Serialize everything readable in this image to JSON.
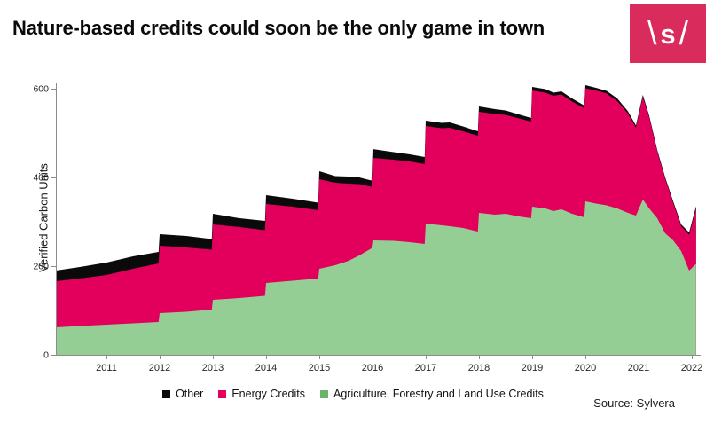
{
  "header": {
    "title": "Nature-based credits could soon be the only game in town",
    "logo": {
      "left": "\\",
      "letter": "s",
      "right": "/",
      "background": "#D92B5C",
      "text_color": "#FFFFFF"
    }
  },
  "footer": {
    "source": "Source: Sylvera"
  },
  "colors": {
    "accent_pink": "#E2005C",
    "area_green": "#95CE94",
    "area_black": "#0A0A0A",
    "axis": "#8C8C8C",
    "tick_text": "#262626"
  },
  "chart_data": {
    "type": "area",
    "stacked": true,
    "title": "",
    "xlabel": "",
    "ylabel": "Verified Carbon Units",
    "grid": false,
    "legend_position": "bottom-center",
    "xlim": [
      2010.05,
      2022.1
    ],
    "ylim": [
      0,
      600
    ],
    "y_ticks": [
      0,
      200,
      400,
      600
    ],
    "x_ticks": [
      2011,
      2012,
      2013,
      2014,
      2015,
      2016,
      2017,
      2018,
      2019,
      2020,
      2021,
      2022
    ],
    "x_tick_labels": [
      "2011",
      "2012",
      "2013",
      "2014",
      "2015",
      "2016",
      "2017",
      "2018",
      "2019",
      "2020",
      "2021",
      "2022"
    ],
    "series": [
      {
        "name": "Agriculture, Forestry and Land Use Credits",
        "color": "#95CE94",
        "legend_color": "#68B468"
      },
      {
        "name": "Energy Credits",
        "color": "#E2005C",
        "legend_color": "#E2005C"
      },
      {
        "name": "Other",
        "color": "#0A0A0A",
        "legend_color": "#0A0A0A"
      }
    ],
    "points_columns": [
      "year",
      "afolu_credits",
      "energy_credits",
      "other_credits"
    ],
    "points": [
      [
        2010.05,
        62,
        104,
        24
      ],
      [
        2010.5,
        65,
        107,
        26
      ],
      [
        2011.0,
        68,
        112,
        28
      ],
      [
        2011.5,
        71,
        123,
        28
      ],
      [
        2011.98,
        74,
        132,
        26
      ],
      [
        2012.0,
        94,
        152,
        26
      ],
      [
        2012.5,
        97,
        145,
        26
      ],
      [
        2012.98,
        102,
        135,
        24
      ],
      [
        2013.0,
        124,
        170,
        24
      ],
      [
        2013.5,
        128,
        160,
        20
      ],
      [
        2013.98,
        133,
        148,
        21
      ],
      [
        2014.0,
        162,
        178,
        20
      ],
      [
        2014.5,
        167,
        167,
        18
      ],
      [
        2014.98,
        172,
        154,
        17
      ],
      [
        2015.0,
        194,
        202,
        18
      ],
      [
        2015.3,
        202,
        186,
        15
      ],
      [
        2015.55,
        212,
        174,
        16
      ],
      [
        2015.75,
        224,
        161,
        15
      ],
      [
        2015.98,
        240,
        139,
        14
      ],
      [
        2016.0,
        258,
        186,
        20
      ],
      [
        2016.4,
        257,
        183,
        17
      ],
      [
        2016.7,
        254,
        182,
        16
      ],
      [
        2016.98,
        250,
        180,
        16
      ],
      [
        2017.0,
        296,
        220,
        12
      ],
      [
        2017.3,
        292,
        219,
        12
      ],
      [
        2017.45,
        290,
        222,
        12
      ],
      [
        2017.7,
        286,
        218,
        11
      ],
      [
        2017.98,
        278,
        216,
        10
      ],
      [
        2018.0,
        320,
        228,
        12
      ],
      [
        2018.3,
        316,
        227,
        11
      ],
      [
        2018.5,
        318,
        223,
        10
      ],
      [
        2018.75,
        312,
        221,
        9
      ],
      [
        2018.98,
        308,
        218,
        8
      ],
      [
        2019.0,
        334,
        262,
        8
      ],
      [
        2019.25,
        330,
        261,
        8
      ],
      [
        2019.4,
        324,
        260,
        7
      ],
      [
        2019.55,
        328,
        259,
        7
      ],
      [
        2019.75,
        318,
        253,
        7
      ],
      [
        2019.98,
        310,
        246,
        6
      ],
      [
        2020.0,
        346,
        255,
        7
      ],
      [
        2020.2,
        341,
        255,
        6
      ],
      [
        2020.4,
        337,
        252,
        6
      ],
      [
        2020.6,
        330,
        242,
        6
      ],
      [
        2020.8,
        320,
        224,
        5
      ],
      [
        2020.95,
        314,
        198,
        5
      ],
      [
        2021.08,
        350,
        231,
        5
      ],
      [
        2021.2,
        330,
        205,
        4
      ],
      [
        2021.35,
        308,
        150,
        4
      ],
      [
        2021.5,
        274,
        122,
        4
      ],
      [
        2021.65,
        258,
        84,
        4
      ],
      [
        2021.8,
        234,
        56,
        4
      ],
      [
        2021.95,
        190,
        81,
        5
      ],
      [
        2022.08,
        205,
        124,
        6
      ]
    ]
  },
  "legend": {
    "items": [
      {
        "label": "Other",
        "color": "#0A0A0A"
      },
      {
        "label": "Energy Credits",
        "color": "#E2005C"
      },
      {
        "label": "Agriculture, Forestry and Land Use Credits",
        "color": "#68B468"
      }
    ]
  }
}
